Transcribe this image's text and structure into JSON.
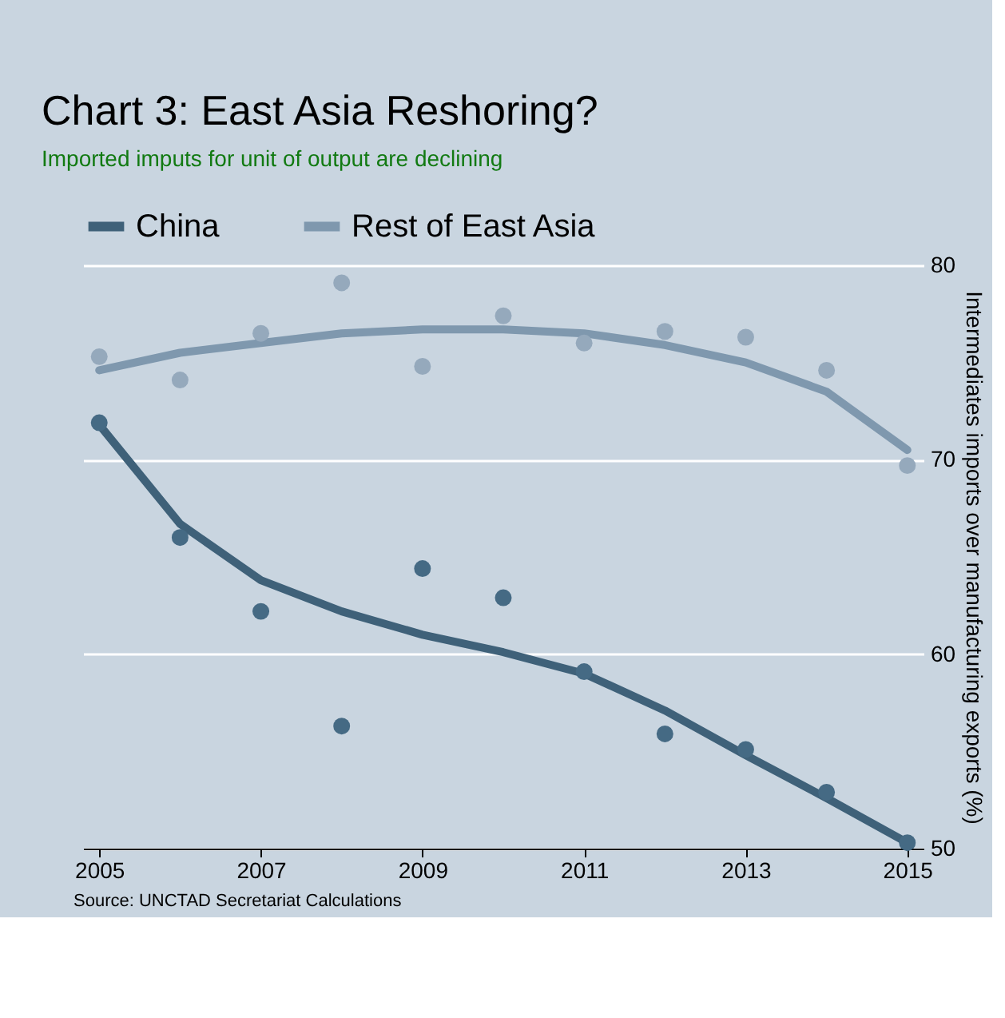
{
  "chart_data": {
    "type": "line",
    "title": "Chart 3: East Asia Reshoring?",
    "subtitle": "Imported imputs for unit of output are declining",
    "ylabel": "Intermediates imports over manufacturing exports (%)",
    "x": [
      2005,
      2006,
      2007,
      2008,
      2009,
      2010,
      2011,
      2012,
      2013,
      2014,
      2015
    ],
    "series": [
      {
        "name": "China",
        "color": "#3f6179",
        "values": [
          71.8,
          66.7,
          63.8,
          62.2,
          61.0,
          60.1,
          59.0,
          57.1,
          54.8,
          52.6,
          50.3
        ]
      },
      {
        "name": "Rest of East Asia",
        "color": "#7f98ae",
        "values": [
          74.6,
          75.5,
          76.0,
          76.5,
          76.7,
          76.7,
          76.5,
          75.9,
          75.0,
          73.5,
          70.5
        ]
      },
      {
        "type": "scatter",
        "marker": "circle",
        "color": "#456a84",
        "values": [
          71.9,
          66.0,
          62.2,
          56.3,
          64.4,
          62.9,
          59.1,
          55.9,
          55.1,
          52.9,
          50.3
        ]
      },
      {
        "type": "scatter",
        "marker": "circle",
        "color": "#95a9bc",
        "values": [
          75.3,
          74.1,
          76.5,
          79.1,
          74.8,
          77.4,
          76.0,
          76.6,
          76.3,
          74.6,
          69.7
        ]
      }
    ],
    "xlim": [
      2004.8,
      2015.2
    ],
    "xticks": [
      2005,
      2007,
      2009,
      2011,
      2013,
      2015
    ],
    "ylim": [
      50,
      80
    ],
    "yticks": [
      50,
      60,
      70,
      80
    ],
    "grid": "y",
    "legend": "top",
    "marker": "none",
    "line_style": "solid",
    "annotations": [
      "Source: UNCTAD Secretariat Calculations"
    ]
  }
}
